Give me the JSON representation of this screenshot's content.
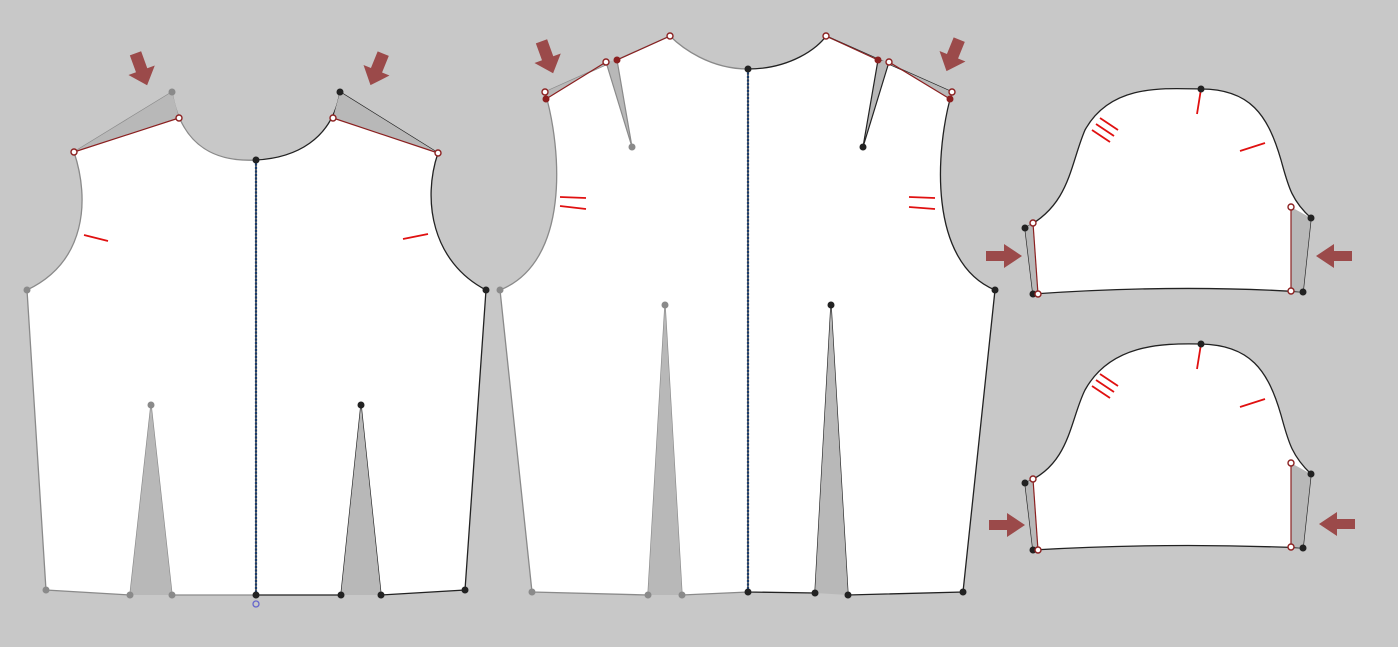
{
  "canvas": {
    "background": "#c8c8c8",
    "piece_fill": "#ffffff",
    "dart_fill": "#b8b8b8",
    "active_outline": "#222222",
    "inactive_outline": "#8a8a8a",
    "marker_color": "#9b4a4a",
    "notch_color": "#e01010",
    "center_line_color": "#1a3d6e",
    "open_point_color": "#8b2020",
    "origin_point_color": "#6666cc"
  },
  "pieces": [
    {
      "id": "front-bodice",
      "kind": "bodice",
      "darts": 2
    },
    {
      "id": "back-bodice",
      "kind": "bodice",
      "darts": 2
    },
    {
      "id": "sleeve-upper",
      "kind": "sleeve"
    },
    {
      "id": "sleeve-lower",
      "kind": "sleeve"
    }
  ],
  "markers": [
    {
      "id": "front-left-shoulder",
      "icon": "down-arrow-icon"
    },
    {
      "id": "front-right-shoulder",
      "icon": "down-arrow-icon"
    },
    {
      "id": "back-left-shoulder",
      "icon": "down-arrow-icon"
    },
    {
      "id": "back-right-shoulder",
      "icon": "down-arrow-icon"
    },
    {
      "id": "sleeve1-left",
      "icon": "right-arrow-icon"
    },
    {
      "id": "sleeve1-right",
      "icon": "left-arrow-icon"
    },
    {
      "id": "sleeve2-left",
      "icon": "right-arrow-icon"
    },
    {
      "id": "sleeve2-right",
      "icon": "left-arrow-icon"
    }
  ]
}
